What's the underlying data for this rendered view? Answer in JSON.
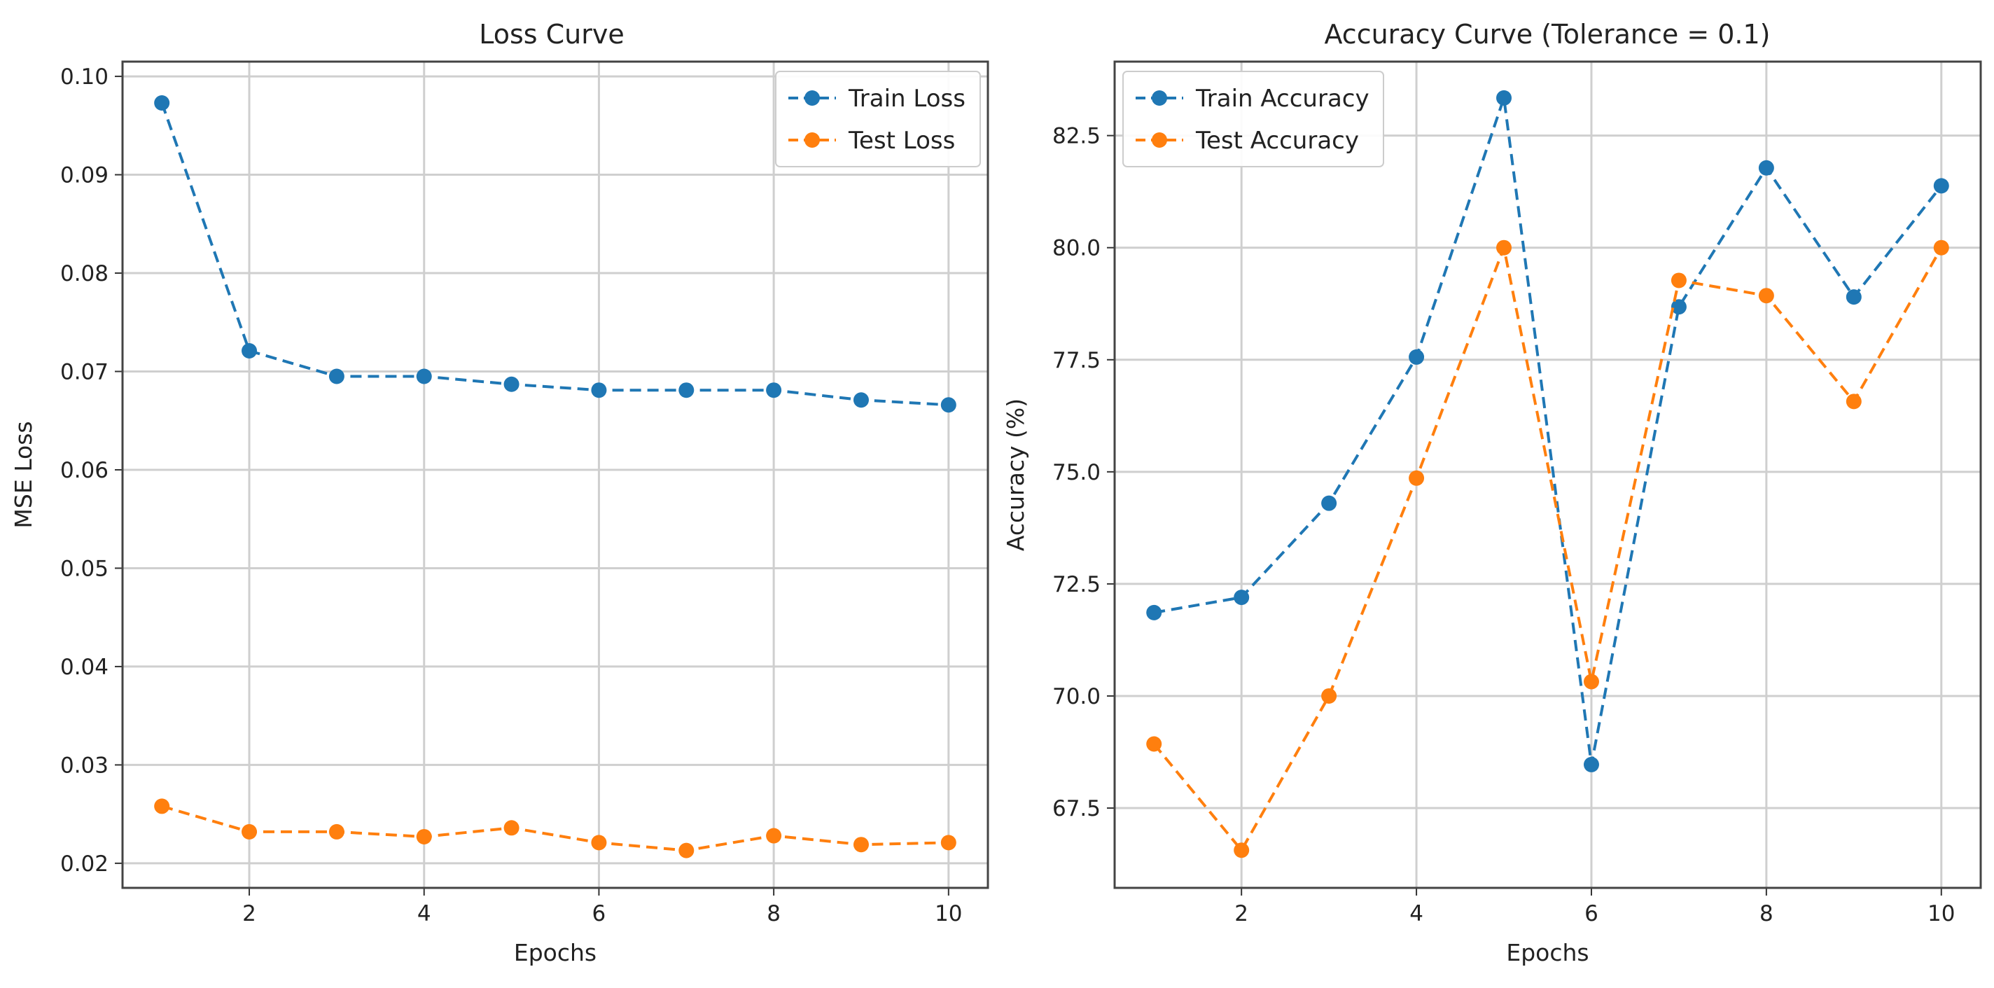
{
  "chart_data": [
    {
      "type": "line",
      "title": "Loss Curve",
      "xlabel": "Epochs",
      "ylabel": "MSE Loss",
      "x": [
        1,
        2,
        3,
        4,
        5,
        6,
        7,
        8,
        9,
        10
      ],
      "xlim": [
        0.55,
        10.45
      ],
      "ylim": [
        0.0175,
        0.1015
      ],
      "xticks": [
        2,
        4,
        6,
        8,
        10
      ],
      "xtick_labels": [
        "2",
        "4",
        "6",
        "8",
        "10"
      ],
      "yticks": [
        0.02,
        0.03,
        0.04,
        0.05,
        0.06,
        0.07,
        0.08,
        0.09,
        0.1
      ],
      "ytick_labels": [
        "0.02",
        "0.03",
        "0.04",
        "0.05",
        "0.06",
        "0.07",
        "0.08",
        "0.09",
        "0.10"
      ],
      "grid": true,
      "legend_position": "top-right",
      "series": [
        {
          "name": "Train Loss",
          "color": "#1f77b4",
          "values": [
            0.0973,
            0.0721,
            0.0695,
            0.0695,
            0.0687,
            0.0681,
            0.0681,
            0.0681,
            0.0671,
            0.0666
          ]
        },
        {
          "name": "Test Loss",
          "color": "#ff7f0e",
          "values": [
            0.0258,
            0.0232,
            0.0232,
            0.0227,
            0.0236,
            0.0221,
            0.0213,
            0.0228,
            0.0219,
            0.0221
          ]
        }
      ]
    },
    {
      "type": "line",
      "title": "Accuracy Curve (Tolerance = 0.1)",
      "xlabel": "Epochs",
      "ylabel": "Accuracy (%)",
      "x": [
        1,
        2,
        3,
        4,
        5,
        6,
        7,
        8,
        9,
        10
      ],
      "xlim": [
        0.55,
        10.45
      ],
      "ylim": [
        65.72,
        84.15
      ],
      "xticks": [
        2,
        4,
        6,
        8,
        10
      ],
      "xtick_labels": [
        "2",
        "4",
        "6",
        "8",
        "10"
      ],
      "yticks": [
        67.5,
        70.0,
        72.5,
        75.0,
        77.5,
        80.0,
        82.5
      ],
      "ytick_labels": [
        "67.5",
        "70.0",
        "72.5",
        "75.0",
        "77.5",
        "80.0",
        "82.5"
      ],
      "grid": true,
      "legend_position": "top-left",
      "series": [
        {
          "name": "Train Accuracy",
          "color": "#1f77b4",
          "values": [
            71.86,
            72.2,
            74.3,
            77.56,
            83.34,
            68.47,
            78.68,
            81.78,
            78.9,
            81.38
          ]
        },
        {
          "name": "Test Accuracy",
          "color": "#ff7f0e",
          "values": [
            68.93,
            66.56,
            70.0,
            74.86,
            80.0,
            70.32,
            79.27,
            78.93,
            76.57,
            80.0
          ]
        }
      ]
    }
  ]
}
